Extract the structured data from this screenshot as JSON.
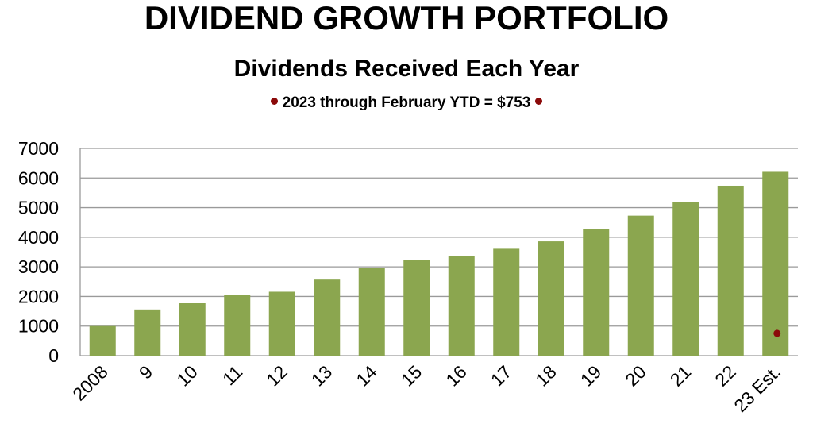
{
  "header": {
    "title": "DIVIDEND GROWTH PORTFOLIO",
    "subtitle": "Dividends Received Each Year",
    "note": "2023 through February YTD = $753"
  },
  "colors": {
    "bar": "#8ba64f",
    "marker": "#8b0a0a",
    "grid": "#9a9a9a",
    "text": "#000000"
  },
  "chart_data": {
    "type": "bar",
    "title": "Dividends Received Each Year",
    "categories": [
      "2008",
      "9",
      "10",
      "11",
      "12",
      "13",
      "14",
      "15",
      "16",
      "17",
      "18",
      "19",
      "20",
      "21",
      "22",
      "23 Est."
    ],
    "values": [
      1000,
      1560,
      1770,
      2060,
      2160,
      2570,
      2950,
      3230,
      3360,
      3610,
      3860,
      4280,
      4730,
      5180,
      5740,
      6210
    ],
    "ylim": [
      0,
      7000
    ],
    "yticks": [
      0,
      1000,
      2000,
      3000,
      4000,
      5000,
      6000,
      7000
    ],
    "grid": true,
    "xlabel": "",
    "ylabel": "",
    "annotations": [
      {
        "category": "23 Est.",
        "value": 753,
        "marker": "dot"
      }
    ]
  }
}
